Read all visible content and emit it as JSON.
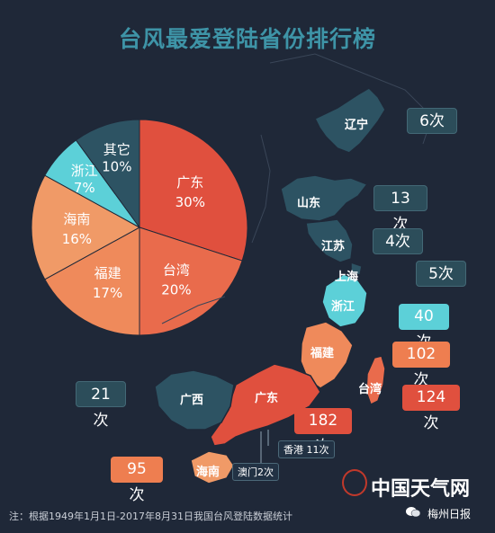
{
  "title": "台风最爱登陆省份排行榜",
  "chart_data": {
    "type": "pie",
    "slices": [
      {
        "name": "广东",
        "value": 30,
        "label": "30%",
        "color": "#e0503e"
      },
      {
        "name": "台湾",
        "value": 20,
        "label": "20%",
        "color": "#e96b4c"
      },
      {
        "name": "福建",
        "value": 17,
        "label": "17%",
        "color": "#ef8a5b"
      },
      {
        "name": "海南",
        "value": 16,
        "label": "16%",
        "color": "#f09a67"
      },
      {
        "name": "浙江",
        "value": 7,
        "label": "7%",
        "color": "#5cd0d8"
      },
      {
        "name": "其它",
        "value": 10,
        "label": "10%",
        "color": "#2d5363"
      }
    ],
    "province_counts": [
      {
        "name": "辽宁",
        "count": 6,
        "label": "6次"
      },
      {
        "name": "山东",
        "count": 13,
        "label": "13次"
      },
      {
        "name": "江苏",
        "count": 4,
        "label": "4次"
      },
      {
        "name": "上海",
        "count": 5,
        "label": "5次"
      },
      {
        "name": "浙江",
        "count": 40,
        "label": "40次"
      },
      {
        "name": "福建",
        "count": 102,
        "label": "102次"
      },
      {
        "name": "台湾",
        "count": 124,
        "label": "124次"
      },
      {
        "name": "广东",
        "count": 182,
        "label": "182次"
      },
      {
        "name": "广西",
        "count": 21,
        "label": "21次"
      },
      {
        "name": "海南",
        "count": 95,
        "label": "95次"
      },
      {
        "name": "香港",
        "count": 11,
        "label": "香港 11次"
      },
      {
        "name": "澳门",
        "count": 2,
        "label": "澳门2次"
      }
    ]
  },
  "footnote": "注：根据1949年1月1日-2017年8月31日我国台风登陆数据统计",
  "logo": {
    "name": "中国天气网",
    "icon": "weather-logo-icon"
  },
  "source": {
    "name": "梅州日报",
    "icon": "wechat-icon"
  }
}
